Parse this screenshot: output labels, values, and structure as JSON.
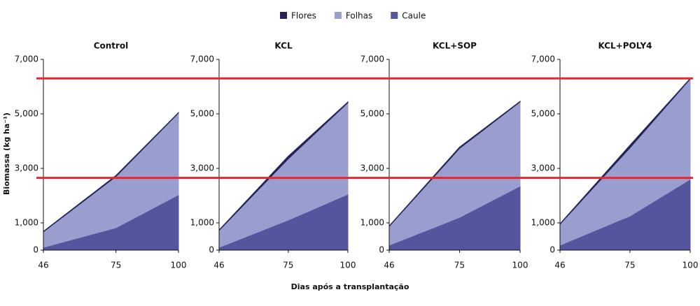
{
  "chart_data": [
    {
      "type": "area",
      "title": "Control",
      "xlabel": "Dias após a transplantação",
      "ylabel": "Biomassa (kg ha⁻¹)",
      "stacked": true,
      "hlines": {
        "values": [
          6300,
          2650
        ],
        "color": "#e8262b"
      },
      "x": [
        46,
        75,
        100
      ],
      "xlim": [
        46,
        100
      ],
      "xticks": [
        46,
        75,
        100
      ],
      "ylim": [
        0,
        7000
      ],
      "yticks": [
        0,
        {
          "value": 1000,
          "label": "1,000"
        },
        {
          "value": 3000,
          "label": "3,000"
        },
        {
          "value": 5000,
          "label": "5,000"
        },
        {
          "value": 7000,
          "label": "7,000"
        }
      ],
      "series": [
        {
          "name": "Flores",
          "color": "#25235a",
          "values": [
            20,
            40,
            20
          ]
        },
        {
          "name": "Folhas",
          "color": "#9a9ecf",
          "values": [
            570,
            1880,
            3000
          ]
        },
        {
          "name": "Caule",
          "color": "#55559f",
          "values": [
            100,
            820,
            2030
          ]
        }
      ]
    },
    {
      "type": "area",
      "title": "KCL",
      "stacked": true,
      "x": [
        46,
        75,
        100
      ],
      "xlim": [
        46,
        100
      ],
      "xticks": [
        46,
        75,
        100
      ],
      "ylim": [
        0,
        7000
      ],
      "yticks": [
        0,
        {
          "value": 1000,
          "label": "1,000"
        },
        {
          "value": 3000,
          "label": "3,000"
        },
        {
          "value": 5000,
          "label": "5,000"
        },
        {
          "value": 7000,
          "label": "7,000"
        }
      ],
      "series": [
        {
          "name": "Flores",
          "color": "#25235a",
          "values": [
            20,
            100,
            30
          ]
        },
        {
          "name": "Folhas",
          "color": "#9a9ecf",
          "values": [
            620,
            2250,
            3360
          ]
        },
        {
          "name": "Caule",
          "color": "#55559f",
          "values": [
            100,
            1100,
            2050
          ]
        }
      ]
    },
    {
      "type": "area",
      "title": "KCL+SOP",
      "stacked": true,
      "x": [
        46,
        75,
        100
      ],
      "xlim": [
        46,
        100
      ],
      "xticks": [
        46,
        75,
        100
      ],
      "ylim": [
        0,
        7000
      ],
      "yticks": [
        0,
        {
          "value": 1000,
          "label": "1,000"
        },
        {
          "value": 3000,
          "label": "3,000"
        },
        {
          "value": 5000,
          "label": "5,000"
        },
        {
          "value": 7000,
          "label": "7,000"
        }
      ],
      "series": [
        {
          "name": "Flores",
          "color": "#25235a",
          "values": [
            20,
            50,
            20
          ]
        },
        {
          "name": "Folhas",
          "color": "#9a9ecf",
          "values": [
            690,
            2530,
            3090
          ]
        },
        {
          "name": "Caule",
          "color": "#55559f",
          "values": [
            180,
            1200,
            2350
          ]
        }
      ]
    },
    {
      "type": "area",
      "title": "KCL+POLY4",
      "stacked": true,
      "x": [
        46,
        75,
        100
      ],
      "xlim": [
        46,
        100
      ],
      "xticks": [
        46,
        75,
        100
      ],
      "ylim": [
        0,
        7000
      ],
      "yticks": [
        0,
        {
          "value": 1000,
          "label": "1,000"
        },
        {
          "value": 3000,
          "label": "3,000"
        },
        {
          "value": 5000,
          "label": "5,000"
        },
        {
          "value": 7000,
          "label": "7,000"
        }
      ],
      "series": [
        {
          "name": "Flores",
          "color": "#25235a",
          "values": [
            20,
            100,
            20
          ]
        },
        {
          "name": "Folhas",
          "color": "#9a9ecf",
          "values": [
            770,
            2500,
            3680
          ]
        },
        {
          "name": "Caule",
          "color": "#55559f",
          "values": [
            180,
            1250,
            2600
          ]
        }
      ]
    }
  ]
}
